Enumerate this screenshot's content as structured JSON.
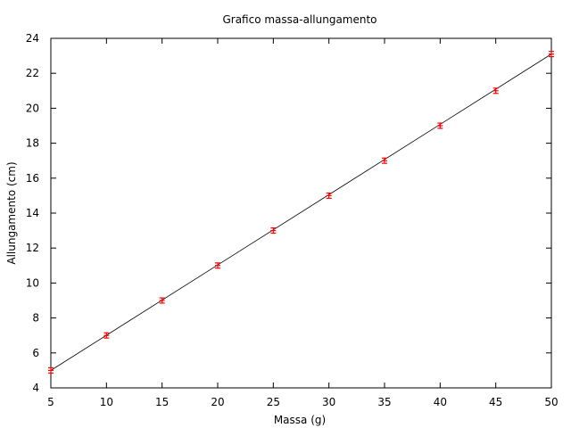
{
  "chart_data": {
    "type": "scatter",
    "title": "Grafico massa-allungamento",
    "xlabel": "Massa (g)",
    "ylabel": "Allungamento (cm)",
    "xlim": [
      5,
      50
    ],
    "ylim": [
      4,
      24
    ],
    "xticks": [
      5,
      10,
      15,
      20,
      25,
      30,
      35,
      40,
      45,
      50
    ],
    "yticks": [
      4,
      6,
      8,
      10,
      12,
      14,
      16,
      18,
      20,
      22,
      24
    ],
    "grid": false,
    "series": [
      {
        "kind": "points-with-errorbars",
        "color": "#ff0000",
        "x": [
          5,
          10,
          15,
          20,
          25,
          30,
          35,
          40,
          45,
          50
        ],
        "y": [
          5,
          7,
          9,
          11,
          13,
          15,
          17,
          19,
          21,
          23.1
        ],
        "yerr": [
          0.15,
          0.15,
          0.15,
          0.15,
          0.15,
          0.15,
          0.15,
          0.15,
          0.15,
          0.15
        ]
      },
      {
        "kind": "line",
        "color": "#000000",
        "x": [
          5,
          50
        ],
        "y": [
          5,
          23.1
        ]
      }
    ]
  }
}
